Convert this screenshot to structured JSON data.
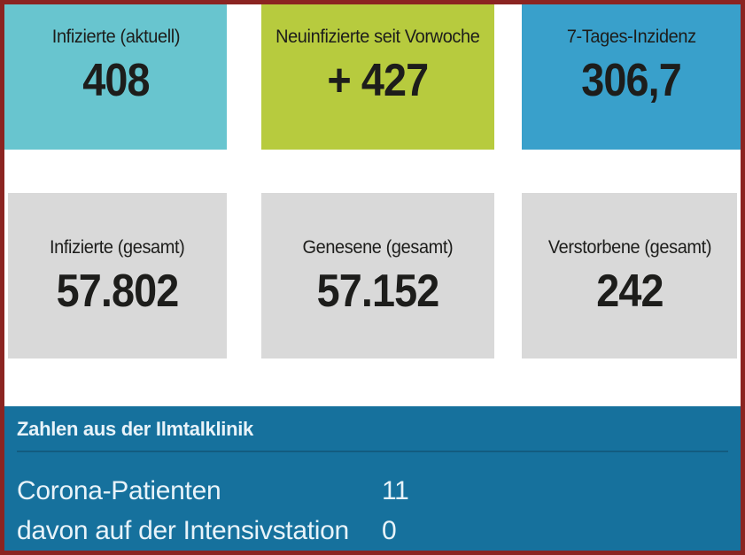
{
  "frame": {
    "border_color": "#8b2421",
    "background": "#ffffff"
  },
  "cards_row1": [
    {
      "label": "Infizierte (aktuell)",
      "value": "408",
      "bg": "#68c5cf"
    },
    {
      "label": "Neuinfizierte seit Vorwoche",
      "value": "+ 427",
      "bg": "#b7cb3e"
    },
    {
      "label": "7-Tages-Inzidenz",
      "value": "306,7",
      "bg": "#39a0cb"
    }
  ],
  "cards_row2": [
    {
      "label": "Infizierte (gesamt)",
      "value": "57.802",
      "bg": "#d9d9d9"
    },
    {
      "label": "Genesene (gesamt)",
      "value": "57.152",
      "bg": "#d9d9d9"
    },
    {
      "label": "Verstorbene (gesamt)",
      "value": "242",
      "bg": "#d9d9d9"
    }
  ],
  "clinic_panel": {
    "title": "Zahlen aus der Ilmtalklinik",
    "bg": "#16719d",
    "text_color": "#e8f3f9",
    "rows": [
      {
        "label": "Corona-Patienten",
        "value": "11"
      },
      {
        "label": "davon auf der Intensivstation",
        "value": "0"
      }
    ]
  },
  "chart_data": {
    "type": "table",
    "kpis": [
      {
        "label": "Infizierte (aktuell)",
        "value": 408,
        "display": "408"
      },
      {
        "label": "Neuinfizierte seit Vorwoche",
        "value": 427,
        "display": "+ 427"
      },
      {
        "label": "7-Tages-Inzidenz",
        "value": 306.7,
        "display": "306,7"
      },
      {
        "label": "Infizierte (gesamt)",
        "value": 57802,
        "display": "57.802"
      },
      {
        "label": "Genesene (gesamt)",
        "value": 57152,
        "display": "57.152"
      },
      {
        "label": "Verstorbene (gesamt)",
        "value": 242,
        "display": "242"
      },
      {
        "label": "Corona-Patienten (Ilmtalklinik)",
        "value": 11,
        "display": "11"
      },
      {
        "label": "davon auf der Intensivstation (Ilmtalklinik)",
        "value": 0,
        "display": "0"
      }
    ]
  }
}
